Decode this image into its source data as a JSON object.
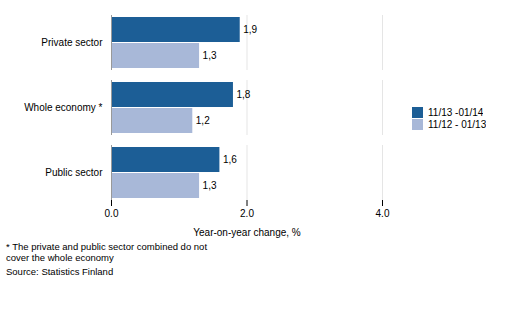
{
  "chart_data": {
    "type": "bar",
    "orientation": "horizontal",
    "categories": [
      "Public sector",
      "Whole economy *",
      "Private sector"
    ],
    "series": [
      {
        "name": "11/13 -01/14",
        "color": "#1c5e96",
        "values": [
          1.6,
          1.8,
          1.9
        ],
        "value_labels": [
          "1,6",
          "1,8",
          "1,9"
        ]
      },
      {
        "name": "11/12 - 01/13",
        "color": "#a8b8d8",
        "values": [
          1.3,
          1.2,
          1.3
        ],
        "value_labels": [
          "1,3",
          "1,2",
          "1,3"
        ]
      }
    ],
    "xlim": [
      0,
      4
    ],
    "xticks": [
      0,
      2,
      4
    ],
    "xlabel": "Year-on-year change, %",
    "annotations": [
      "*   The private and public sector combined do not\ncover the whole economy",
      "Source: Statistics Finland"
    ],
    "data_labels": true,
    "grid": true,
    "legend": "right"
  }
}
